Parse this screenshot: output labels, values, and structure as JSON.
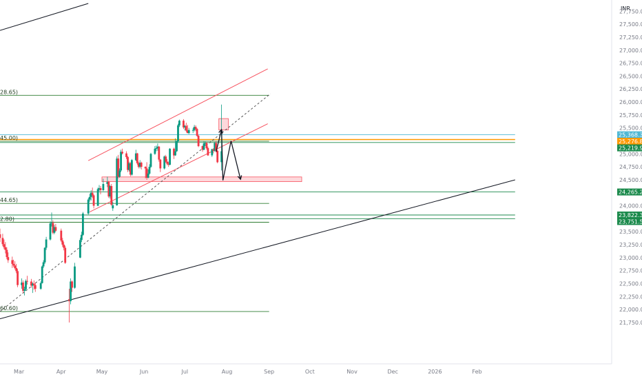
{
  "chart_data": {
    "type": "candlestick",
    "currency": "INR",
    "y_ticks": [
      "27,750.00",
      "27,500.00",
      "27,250.00",
      "27,000.00",
      "26,750.00",
      "26,500.00",
      "26,250.00",
      "26,000.00",
      "25,750.00",
      "25,500.00",
      "25,000.00",
      "24,750.00",
      "24,500.00",
      "24,000.00",
      "23,500.00",
      "23,250.00",
      "23,000.00",
      "22,750.00",
      "22,500.00",
      "22,250.00",
      "22,000.00",
      "21,750.00"
    ],
    "y_tick_values": [
      27750,
      27500,
      27250,
      27000,
      26750,
      26500,
      26250,
      26000,
      25750,
      25500,
      25000,
      24750,
      24500,
      24000,
      23500,
      23250,
      23000,
      22750,
      22500,
      22250,
      22000,
      21750
    ],
    "ylim": [
      21650,
      27900
    ],
    "x_ticks": [
      {
        "label": "Mar",
        "date": "2025-03-01"
      },
      {
        "label": "Apr",
        "date": "2025-04-01"
      },
      {
        "label": "May",
        "date": "2025-05-01"
      },
      {
        "label": "Jun",
        "date": "2025-06-01"
      },
      {
        "label": "Jul",
        "date": "2025-07-01"
      },
      {
        "label": "Aug",
        "date": "2025-08-01"
      },
      {
        "label": "Sep",
        "date": "2025-09-01"
      },
      {
        "label": "Oct",
        "date": "2025-10-01"
      },
      {
        "label": "Nov",
        "date": "2025-11-01"
      },
      {
        "label": "Dec",
        "date": "2025-12-01"
      },
      {
        "label": "2026",
        "date": "2026-01-01"
      },
      {
        "label": "Feb",
        "date": "2026-02-01"
      }
    ],
    "price_badges": [
      {
        "label": "25,368.35",
        "value": 25368.35,
        "color": "#4fb7d4"
      },
      {
        "label": "25,276.85",
        "value": 25276.85,
        "color": "#ff9800"
      },
      {
        "label": "25,219.90",
        "value": 25219.9,
        "color": "#1b8a4c"
      },
      {
        "label": "24,265.20",
        "value": 24265.2,
        "color": "#1b8a4c"
      },
      {
        "label": "23,822.35",
        "value": 23822.35,
        "color": "#1b8a4c"
      },
      {
        "label": "23,751.50",
        "value": 23751.5,
        "color": "#1b8a4c"
      }
    ],
    "level_labels": [
      {
        "label": "28.65)",
        "value": 26128.65
      },
      {
        "label": "45.00)",
        "value": 25245
      },
      {
        "label": "44.65)",
        "value": 24044.65
      },
      {
        "label": "2.80)",
        "value": 23682.8
      },
      {
        "label": "60.60)",
        "value": 21960.6
      }
    ],
    "horizontal_levels": [
      {
        "value": 26128.65,
        "color": "#2e7d32",
        "start": "2025-02-15",
        "end": "2025-09-01"
      },
      {
        "value": 25368.35,
        "color": "#4fb7d4",
        "start": "2025-02-15",
        "end": "2026-03-01"
      },
      {
        "value": 25276.85,
        "color": "#ff9800",
        "start": "2025-02-15",
        "end": "2026-03-01"
      },
      {
        "value": 25245,
        "color": "#2e7d32",
        "start": "2025-02-15",
        "end": "2025-09-01"
      },
      {
        "value": 25219.9,
        "color": "#1b8a4c",
        "start": "2025-02-15",
        "end": "2026-03-01"
      },
      {
        "value": 24265.2,
        "color": "#1b8a4c",
        "start": "2025-02-15",
        "end": "2026-03-01"
      },
      {
        "value": 24044.65,
        "color": "#2e7d32",
        "start": "2025-02-15",
        "end": "2025-09-01"
      },
      {
        "value": 23822.35,
        "color": "#1b8a4c",
        "start": "2025-02-15",
        "end": "2026-03-01"
      },
      {
        "value": 23751.5,
        "color": "#1b8a4c",
        "start": "2025-02-15",
        "end": "2026-03-01"
      },
      {
        "value": 23682.8,
        "color": "#2e7d32",
        "start": "2025-02-15",
        "end": "2025-09-01"
      },
      {
        "value": 21960.6,
        "color": "#2e7d32",
        "start": "2025-02-15",
        "end": "2025-09-01"
      }
    ],
    "trend_lines": [
      {
        "name": "upper-long",
        "color": "#131722",
        "dashed": false,
        "p1": [
          "2025-02-15",
          27380
        ],
        "p2": [
          "2025-04-21",
          27900
        ]
      },
      {
        "name": "lower-long",
        "color": "#131722",
        "dashed": false,
        "p1": [
          "2025-02-15",
          21820
        ],
        "p2": [
          "2026-03-01",
          24500
        ]
      },
      {
        "name": "channel-upper",
        "color": "#f7525f",
        "dashed": false,
        "p1": [
          "2025-04-21",
          24870
        ],
        "p2": [
          "2025-08-31",
          26640
        ]
      },
      {
        "name": "channel-lower",
        "color": "#f7525f",
        "dashed": false,
        "p1": [
          "2025-04-22",
          23880
        ],
        "p2": [
          "2025-08-31",
          25580
        ]
      },
      {
        "name": "dashed-trend",
        "color": "#555555",
        "dashed": true,
        "p1": [
          "2025-02-15",
          21960
        ],
        "p2": [
          "2025-09-02",
          26160
        ]
      }
    ],
    "zones": [
      {
        "name": "resistance-box",
        "color": "#f7525f",
        "start": "2025-07-26",
        "end": "2025-08-02",
        "low": 25460,
        "high": 25680
      },
      {
        "name": "support-zone",
        "color": "#f7525f",
        "start": "2025-05-01",
        "end": "2025-09-25",
        "low": 24465,
        "high": 24555
      }
    ],
    "projection_path": [
      [
        "2025-07-24",
        25040
      ],
      [
        "2025-07-28",
        25470
      ],
      [
        "2025-07-29",
        24490
      ],
      [
        "2025-08-04",
        25250
      ],
      [
        "2025-08-11",
        24510
      ]
    ],
    "candles": [
      [
        "2025-02-15",
        23450,
        23560,
        23300,
        23380
      ],
      [
        "2025-02-17",
        23380,
        23460,
        23220,
        23260
      ],
      [
        "2025-02-18",
        23260,
        23350,
        23160,
        23200
      ],
      [
        "2025-02-19",
        23200,
        23300,
        23080,
        23150
      ],
      [
        "2025-02-20",
        23150,
        23200,
        22970,
        23010
      ],
      [
        "2025-02-21",
        23010,
        23100,
        22900,
        22950
      ],
      [
        "2025-02-24",
        22950,
        23020,
        22800,
        22880
      ],
      [
        "2025-02-25",
        22880,
        22960,
        22820,
        22850
      ],
      [
        "2025-02-26",
        22850,
        22930,
        22770,
        22800
      ],
      [
        "2025-02-27",
        22800,
        22880,
        22700,
        22740
      ],
      [
        "2025-02-28",
        22740,
        22780,
        22430,
        22470
      ],
      [
        "2025-03-03",
        22470,
        22600,
        22400,
        22520
      ],
      [
        "2025-03-04",
        22520,
        22560,
        22320,
        22360
      ],
      [
        "2025-03-05",
        22360,
        22440,
        22270,
        22390
      ],
      [
        "2025-03-06",
        22390,
        22580,
        22360,
        22550
      ],
      [
        "2025-03-07",
        22550,
        22650,
        22480,
        22540
      ],
      [
        "2025-03-10",
        22540,
        22590,
        22420,
        22460
      ],
      [
        "2025-03-11",
        22460,
        22520,
        22320,
        22500
      ],
      [
        "2025-03-12",
        22500,
        22560,
        22380,
        22470
      ],
      [
        "2025-03-13",
        22470,
        22520,
        22340,
        22400
      ],
      [
        "2025-03-17",
        22400,
        22540,
        22380,
        22510
      ],
      [
        "2025-03-18",
        22510,
        22850,
        22500,
        22830
      ],
      [
        "2025-03-19",
        22830,
        22950,
        22800,
        22910
      ],
      [
        "2025-03-20",
        22910,
        23200,
        22880,
        23190
      ],
      [
        "2025-03-21",
        23190,
        23400,
        23150,
        23350
      ],
      [
        "2025-03-24",
        23350,
        23700,
        23330,
        23660
      ],
      [
        "2025-03-25",
        23660,
        23870,
        23600,
        23670
      ],
      [
        "2025-03-26",
        23670,
        23720,
        23450,
        23480
      ],
      [
        "2025-03-27",
        23480,
        23630,
        23450,
        23590
      ],
      [
        "2025-03-28",
        23590,
        23650,
        23500,
        23520
      ],
      [
        "2025-04-01",
        23520,
        23560,
        23300,
        23330
      ],
      [
        "2025-04-02",
        23330,
        23380,
        23210,
        23250
      ],
      [
        "2025-04-03",
        23250,
        23300,
        23140,
        23190
      ],
      [
        "2025-04-04",
        23190,
        23230,
        22880,
        22900
      ],
      [
        "2025-04-07",
        22200,
        22400,
        21750,
        22160
      ],
      [
        "2025-04-08",
        22160,
        22600,
        22100,
        22540
      ],
      [
        "2025-04-09",
        22540,
        22560,
        22340,
        22420
      ],
      [
        "2025-04-11",
        22420,
        22900,
        22400,
        22830
      ],
      [
        "2025-04-15",
        23000,
        23380,
        22990,
        23340
      ],
      [
        "2025-04-16",
        23340,
        23500,
        23300,
        23440
      ],
      [
        "2025-04-17",
        23440,
        23880,
        23420,
        23850
      ],
      [
        "2025-04-21",
        23850,
        24150,
        23830,
        24120
      ],
      [
        "2025-04-22",
        24120,
        24230,
        24080,
        24170
      ],
      [
        "2025-04-23",
        24170,
        24300,
        24100,
        24250
      ],
      [
        "2025-04-24",
        24250,
        24350,
        24150,
        24200
      ],
      [
        "2025-04-25",
        24200,
        24220,
        23950,
        24000
      ],
      [
        "2025-04-28",
        24000,
        24350,
        23990,
        24320
      ],
      [
        "2025-04-29",
        24320,
        24400,
        24280,
        24340
      ],
      [
        "2025-04-30",
        24340,
        24380,
        24220,
        24300
      ],
      [
        "2025-05-02",
        24300,
        24520,
        24280,
        24420
      ],
      [
        "2025-05-05",
        24420,
        24560,
        24360,
        24460
      ],
      [
        "2025-05-06",
        24460,
        24480,
        24150,
        24180
      ],
      [
        "2025-05-07",
        24180,
        24400,
        24140,
        24380
      ],
      [
        "2025-05-08",
        24380,
        24420,
        24000,
        24020
      ],
      [
        "2025-05-09",
        23950,
        24080,
        23900,
        24010
      ],
      [
        "2025-05-12",
        24010,
        24950,
        24000,
        24910
      ],
      [
        "2025-05-13",
        24910,
        24980,
        24530,
        24560
      ],
      [
        "2025-05-14",
        24560,
        24720,
        24540,
        24680
      ],
      [
        "2025-05-15",
        24680,
        25080,
        24650,
        25040
      ],
      [
        "2025-05-16",
        25040,
        25100,
        24990,
        25010
      ],
      [
        "2025-05-19",
        25010,
        25050,
        24900,
        24940
      ],
      [
        "2025-05-20",
        24940,
        24960,
        24650,
        24690
      ],
      [
        "2025-05-21",
        24690,
        24850,
        24660,
        24820
      ],
      [
        "2025-05-22",
        24820,
        24840,
        24570,
        24600
      ],
      [
        "2025-05-23",
        24600,
        24900,
        24580,
        24880
      ],
      [
        "2025-05-26",
        24880,
        25080,
        24860,
        25010
      ],
      [
        "2025-05-27",
        25010,
        25020,
        24790,
        24820
      ],
      [
        "2025-05-28",
        24820,
        24850,
        24720,
        24750
      ],
      [
        "2025-05-29",
        24750,
        24880,
        24720,
        24830
      ],
      [
        "2025-05-30",
        24830,
        24850,
        24700,
        24750
      ],
      [
        "2025-06-02",
        24750,
        24760,
        24530,
        24720
      ],
      [
        "2025-06-03",
        24720,
        24840,
        24500,
        24540
      ],
      [
        "2025-06-04",
        24540,
        24700,
        24530,
        24620
      ],
      [
        "2025-06-05",
        24620,
        24800,
        24600,
        24750
      ],
      [
        "2025-06-06",
        24750,
        25020,
        24730,
        25000
      ],
      [
        "2025-06-09",
        25000,
        25150,
        24980,
        25100
      ],
      [
        "2025-06-10",
        25100,
        25160,
        25050,
        25110
      ],
      [
        "2025-06-11",
        25110,
        25200,
        25060,
        25140
      ],
      [
        "2025-06-12",
        25140,
        25150,
        24850,
        24890
      ],
      [
        "2025-06-13",
        24890,
        24900,
        24650,
        24720
      ],
      [
        "2025-06-16",
        24720,
        24970,
        24700,
        24950
      ],
      [
        "2025-06-17",
        24950,
        24980,
        24830,
        24850
      ],
      [
        "2025-06-18",
        24850,
        24900,
        24780,
        24810
      ],
      [
        "2025-06-19",
        24810,
        24850,
        24750,
        24790
      ],
      [
        "2025-06-20",
        24790,
        25110,
        24780,
        25100
      ],
      [
        "2025-06-23",
        25100,
        25120,
        24900,
        24970
      ],
      [
        "2025-06-24",
        24970,
        25300,
        24960,
        25050
      ],
      [
        "2025-06-25",
        25050,
        25260,
        25040,
        25240
      ],
      [
        "2025-06-26",
        25240,
        25580,
        25220,
        25550
      ],
      [
        "2025-06-27",
        25550,
        25660,
        25520,
        25640
      ],
      [
        "2025-06-30",
        25640,
        25670,
        25480,
        25510
      ],
      [
        "2025-07-01",
        25510,
        25560,
        25450,
        25540
      ],
      [
        "2025-07-02",
        25540,
        25600,
        25420,
        25450
      ],
      [
        "2025-07-03",
        25450,
        25560,
        25400,
        25400
      ],
      [
        "2025-07-04",
        25400,
        25500,
        25380,
        25460
      ],
      [
        "2025-07-07",
        25460,
        25500,
        25400,
        25460
      ],
      [
        "2025-07-08",
        25460,
        25560,
        25430,
        25520
      ],
      [
        "2025-07-09",
        25520,
        25550,
        25440,
        25480
      ],
      [
        "2025-07-10",
        25480,
        25500,
        25330,
        25350
      ],
      [
        "2025-07-11",
        25350,
        25370,
        25130,
        25150
      ],
      [
        "2025-07-14",
        25150,
        25160,
        25040,
        25080
      ],
      [
        "2025-07-15",
        25080,
        25240,
        25070,
        25200
      ],
      [
        "2025-07-16",
        25200,
        25250,
        25150,
        25210
      ],
      [
        "2025-07-17",
        25210,
        25230,
        25080,
        25110
      ],
      [
        "2025-07-18",
        25110,
        25140,
        24960,
        24970
      ],
      [
        "2025-07-21",
        24970,
        25100,
        24940,
        25090
      ],
      [
        "2025-07-22",
        25090,
        25110,
        25010,
        25060
      ],
      [
        "2025-07-23",
        25060,
        25230,
        25040,
        25210
      ],
      [
        "2025-07-24",
        25210,
        25250,
        25030,
        25060
      ],
      [
        "2025-07-25",
        25060,
        25080,
        24820,
        24840
      ],
      [
        "2025-07-28",
        24840,
        25950,
        24680,
        25050
      ]
    ]
  }
}
